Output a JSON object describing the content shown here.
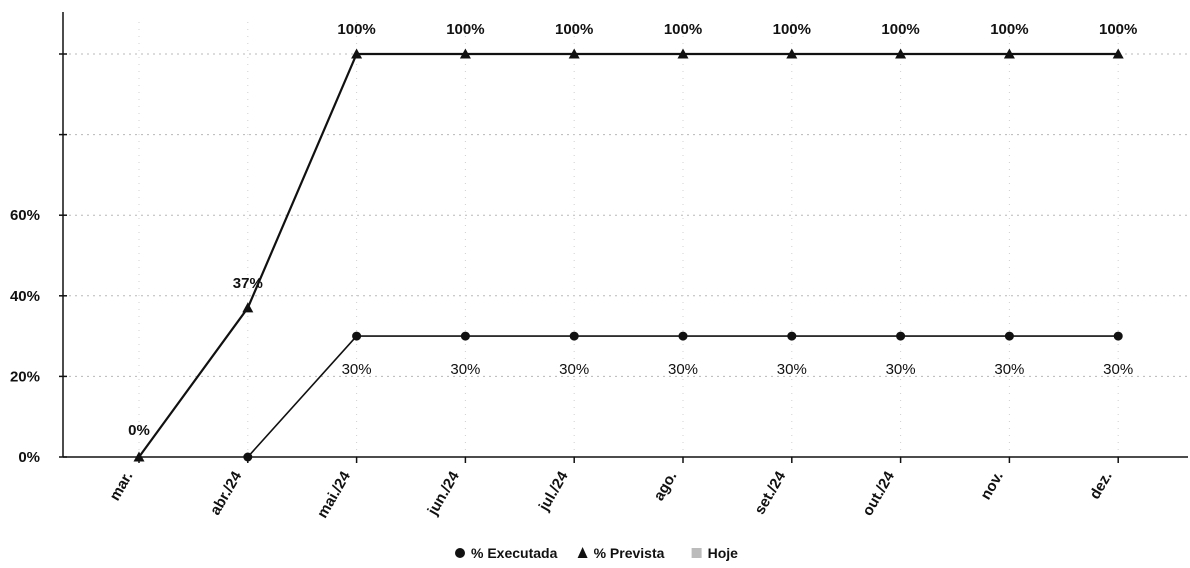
{
  "chart_data": {
    "type": "line",
    "categories": [
      "mar.",
      "abr./24",
      "mai./24",
      "jun./24",
      "jul./24",
      "ago.",
      "set./24",
      "out./24",
      "nov.",
      "dez."
    ],
    "series": [
      {
        "name": "% Executada",
        "marker": "circle",
        "values": [
          null,
          0,
          30,
          30,
          30,
          30,
          30,
          30,
          30,
          30
        ],
        "labels": [
          "",
          "",
          "30%",
          "30%",
          "30%",
          "30%",
          "30%",
          "30%",
          "30%",
          "30%"
        ],
        "color": "#111111"
      },
      {
        "name": "% Prevista",
        "marker": "triangle",
        "values": [
          0,
          37,
          100,
          100,
          100,
          100,
          100,
          100,
          100,
          100
        ],
        "labels": [
          "0%",
          "37%",
          "100%",
          "100%",
          "100%",
          "100%",
          "100%",
          "100%",
          "100%",
          "100%"
        ],
        "color": "#111111"
      }
    ],
    "legend_extra": {
      "name": "Hoje",
      "marker": "square",
      "color": "#bbbbbb"
    },
    "yticks": [
      0,
      20,
      40,
      60,
      80,
      100
    ],
    "ytick_labels": [
      "0%",
      "20%",
      "40%",
      "60%",
      "",
      ""
    ],
    "ylim": [
      0,
      100
    ],
    "grid": true,
    "legend_position": "bottom-center",
    "title": "",
    "xlabel": "",
    "ylabel": ""
  }
}
